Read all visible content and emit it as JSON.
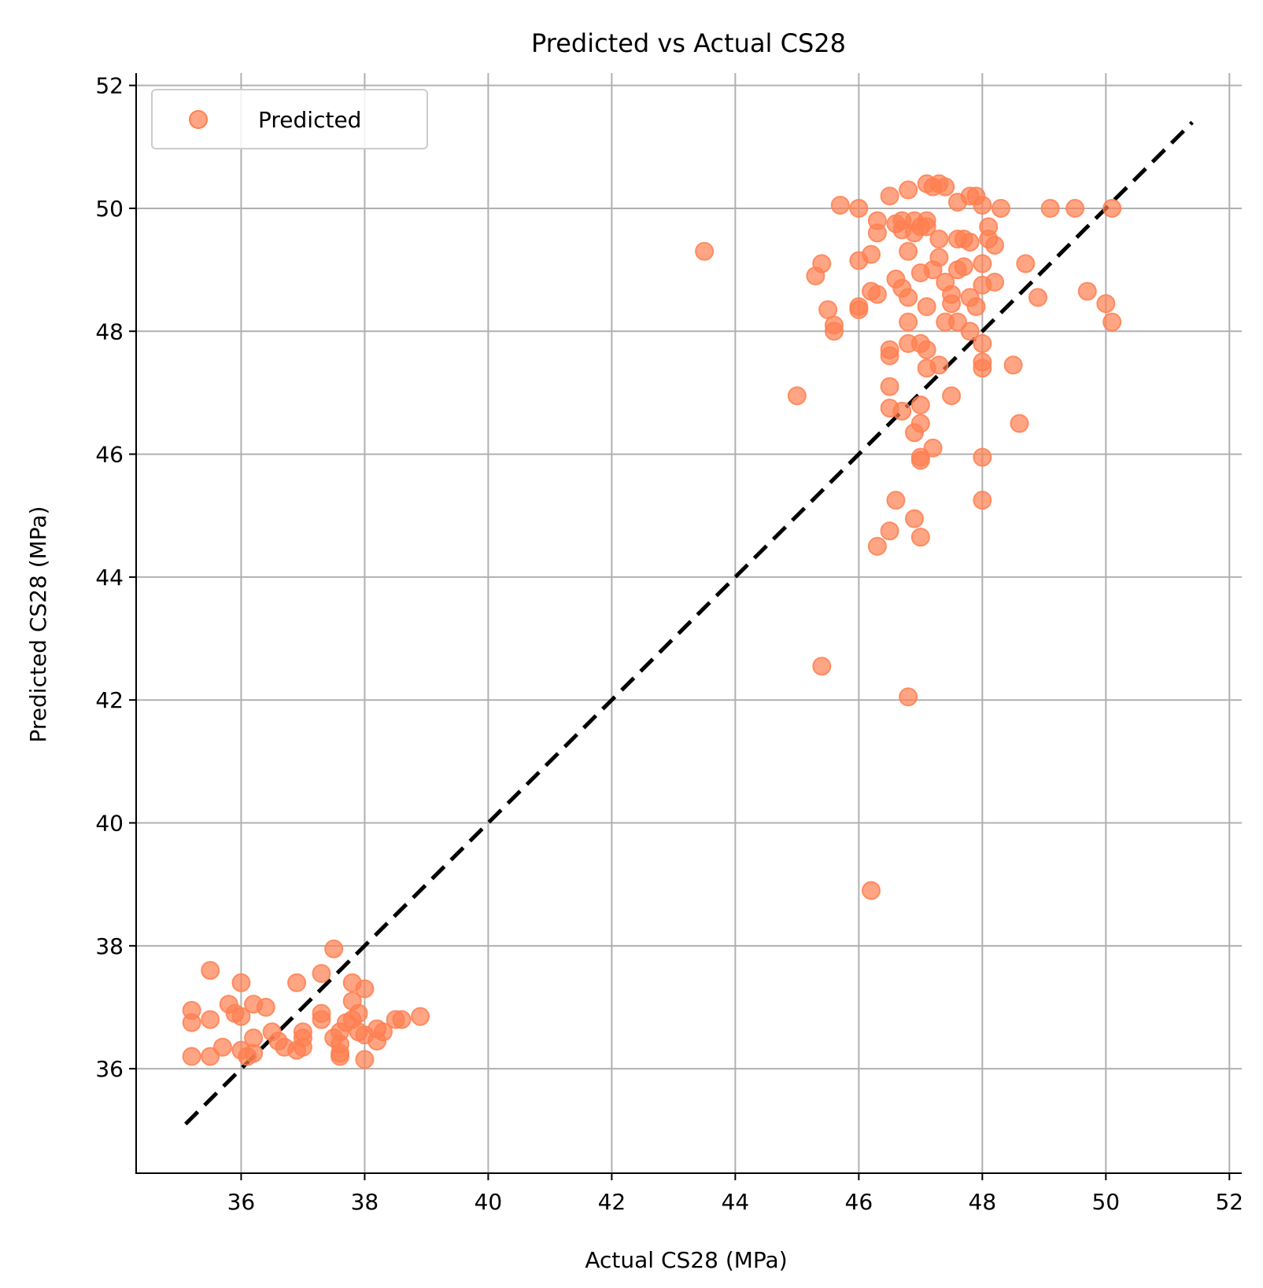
{
  "chart_data": {
    "type": "scatter",
    "title": "Predicted vs Actual CS28",
    "xlabel": "Actual CS28 (MPa)",
    "ylabel": "Predicted CS28 (MPa)",
    "xlim": [
      34.3,
      52.2
    ],
    "ylim": [
      34.3,
      52.2
    ],
    "x_ticks": [
      36,
      38,
      40,
      42,
      44,
      46,
      48,
      50,
      52
    ],
    "y_ticks": [
      36,
      38,
      40,
      42,
      44,
      46,
      48,
      50,
      52
    ],
    "grid": true,
    "legend": {
      "position": "upper-left",
      "entries": [
        "Predicted"
      ]
    },
    "reference_line": {
      "style": "dashed",
      "color": "#000000",
      "from": [
        35.1,
        35.1
      ],
      "to": [
        51.4,
        51.4
      ]
    },
    "series": [
      {
        "name": "Predicted",
        "color": "#FF7F50",
        "points": [
          [
            35.2,
            36.95
          ],
          [
            35.2,
            36.75
          ],
          [
            35.2,
            36.2
          ],
          [
            35.5,
            37.6
          ],
          [
            35.5,
            36.8
          ],
          [
            35.5,
            36.2
          ],
          [
            35.7,
            36.35
          ],
          [
            35.8,
            37.05
          ],
          [
            35.9,
            36.9
          ],
          [
            36.0,
            37.4
          ],
          [
            36.0,
            36.85
          ],
          [
            36.0,
            36.3
          ],
          [
            36.1,
            36.2
          ],
          [
            36.2,
            37.05
          ],
          [
            36.2,
            36.5
          ],
          [
            36.2,
            36.25
          ],
          [
            36.4,
            37.0
          ],
          [
            36.5,
            36.6
          ],
          [
            36.6,
            36.45
          ],
          [
            36.7,
            36.35
          ],
          [
            36.9,
            37.4
          ],
          [
            36.9,
            36.3
          ],
          [
            37.0,
            36.6
          ],
          [
            37.0,
            36.5
          ],
          [
            37.0,
            36.35
          ],
          [
            37.3,
            37.55
          ],
          [
            37.3,
            36.9
          ],
          [
            37.3,
            36.8
          ],
          [
            37.5,
            37.95
          ],
          [
            37.5,
            36.5
          ],
          [
            37.6,
            36.6
          ],
          [
            37.6,
            36.4
          ],
          [
            37.6,
            36.25
          ],
          [
            37.6,
            36.2
          ],
          [
            37.7,
            36.75
          ],
          [
            37.8,
            37.4
          ],
          [
            37.8,
            37.1
          ],
          [
            37.8,
            36.8
          ],
          [
            37.9,
            36.9
          ],
          [
            37.9,
            36.6
          ],
          [
            38.0,
            37.3
          ],
          [
            38.0,
            36.55
          ],
          [
            38.0,
            36.15
          ],
          [
            38.2,
            36.65
          ],
          [
            38.2,
            36.45
          ],
          [
            38.3,
            36.6
          ],
          [
            38.5,
            36.8
          ],
          [
            38.6,
            36.8
          ],
          [
            38.9,
            36.85
          ],
          [
            43.5,
            49.3
          ],
          [
            45.0,
            46.95
          ],
          [
            45.3,
            48.9
          ],
          [
            45.4,
            49.1
          ],
          [
            45.4,
            42.55
          ],
          [
            45.5,
            48.35
          ],
          [
            45.6,
            48.1
          ],
          [
            45.6,
            48.0
          ],
          [
            45.7,
            50.05
          ],
          [
            46.0,
            50.0
          ],
          [
            46.0,
            49.15
          ],
          [
            46.0,
            48.4
          ],
          [
            46.0,
            48.35
          ],
          [
            46.2,
            49.25
          ],
          [
            46.2,
            48.65
          ],
          [
            46.2,
            38.9
          ],
          [
            46.3,
            49.8
          ],
          [
            46.3,
            49.6
          ],
          [
            46.3,
            48.6
          ],
          [
            46.3,
            44.5
          ],
          [
            46.5,
            50.2
          ],
          [
            46.5,
            47.7
          ],
          [
            46.5,
            47.6
          ],
          [
            46.5,
            47.1
          ],
          [
            46.5,
            46.75
          ],
          [
            46.5,
            44.75
          ],
          [
            46.6,
            49.75
          ],
          [
            46.6,
            48.85
          ],
          [
            46.6,
            45.25
          ],
          [
            46.7,
            49.8
          ],
          [
            46.7,
            49.65
          ],
          [
            46.7,
            48.7
          ],
          [
            46.7,
            46.7
          ],
          [
            46.8,
            50.3
          ],
          [
            46.8,
            49.3
          ],
          [
            46.8,
            48.55
          ],
          [
            46.8,
            48.15
          ],
          [
            46.8,
            47.8
          ],
          [
            46.8,
            42.05
          ],
          [
            46.9,
            49.8
          ],
          [
            46.9,
            49.6
          ],
          [
            46.9,
            46.35
          ],
          [
            46.9,
            44.95
          ],
          [
            47.0,
            49.7
          ],
          [
            47.0,
            48.95
          ],
          [
            47.0,
            47.8
          ],
          [
            47.0,
            46.8
          ],
          [
            47.0,
            46.5
          ],
          [
            47.0,
            45.95
          ],
          [
            47.0,
            45.9
          ],
          [
            47.0,
            44.65
          ],
          [
            47.1,
            50.4
          ],
          [
            47.1,
            49.8
          ],
          [
            47.1,
            49.7
          ],
          [
            47.1,
            48.4
          ],
          [
            47.1,
            47.7
          ],
          [
            47.1,
            47.4
          ],
          [
            47.2,
            50.35
          ],
          [
            47.2,
            49.0
          ],
          [
            47.2,
            46.1
          ],
          [
            47.3,
            50.4
          ],
          [
            47.3,
            49.5
          ],
          [
            47.3,
            49.2
          ],
          [
            47.3,
            47.45
          ],
          [
            47.4,
            50.35
          ],
          [
            47.4,
            48.8
          ],
          [
            47.4,
            48.15
          ],
          [
            47.5,
            48.6
          ],
          [
            47.5,
            48.45
          ],
          [
            47.5,
            46.95
          ],
          [
            47.6,
            50.1
          ],
          [
            47.6,
            49.5
          ],
          [
            47.6,
            49.0
          ],
          [
            47.6,
            48.15
          ],
          [
            47.7,
            49.5
          ],
          [
            47.7,
            49.05
          ],
          [
            47.8,
            50.2
          ],
          [
            47.8,
            49.45
          ],
          [
            47.8,
            48.55
          ],
          [
            47.8,
            48.0
          ],
          [
            47.9,
            50.2
          ],
          [
            47.9,
            48.4
          ],
          [
            48.0,
            50.05
          ],
          [
            48.0,
            49.1
          ],
          [
            48.0,
            48.75
          ],
          [
            48.0,
            47.8
          ],
          [
            48.0,
            47.5
          ],
          [
            48.0,
            47.4
          ],
          [
            48.0,
            45.95
          ],
          [
            48.0,
            45.25
          ],
          [
            48.1,
            49.7
          ],
          [
            48.1,
            49.5
          ],
          [
            48.2,
            49.4
          ],
          [
            48.2,
            48.8
          ],
          [
            48.3,
            50.0
          ],
          [
            48.5,
            47.45
          ],
          [
            48.6,
            46.5
          ],
          [
            48.7,
            49.1
          ],
          [
            48.9,
            48.55
          ],
          [
            49.1,
            50.0
          ],
          [
            49.5,
            50.0
          ],
          [
            49.7,
            48.65
          ],
          [
            50.0,
            48.45
          ],
          [
            50.1,
            50.0
          ],
          [
            50.1,
            48.15
          ]
        ]
      }
    ]
  }
}
